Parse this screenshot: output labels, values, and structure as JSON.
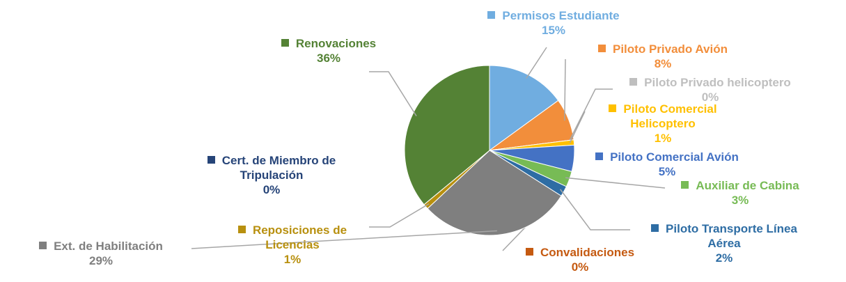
{
  "chart_data": {
    "type": "pie",
    "categories": [
      "Permisos Estudiante",
      "Piloto Privado Avión",
      "Piloto Privado helicoptero",
      "Piloto Comercial Helicoptero",
      "Piloto Comercial Avión",
      "Auxiliar de Cabina",
      "Piloto Transporte Línea Aérea",
      "Convalidaciones",
      "Ext. de Habilitación",
      "Reposiciones de Licencias",
      "Cert. de Miembro de Tripulación",
      "Renovaciones"
    ],
    "values": [
      15,
      8,
      0,
      1,
      5,
      3,
      2,
      0,
      29,
      1,
      0,
      36
    ],
    "value_labels": [
      "15%",
      "8%",
      "0%",
      "1%",
      "5%",
      "3%",
      "2%",
      "0%",
      "29%",
      "1%",
      "0%",
      "36%"
    ],
    "colors": [
      "#70ade0",
      "#f28e3b",
      "#bfbfbf",
      "#ffc000",
      "#4472c4",
      "#77bb55",
      "#2e6da4",
      "#c55a11",
      "#7f7f7f",
      "#b8900f",
      "#264478",
      "#548235"
    ]
  }
}
